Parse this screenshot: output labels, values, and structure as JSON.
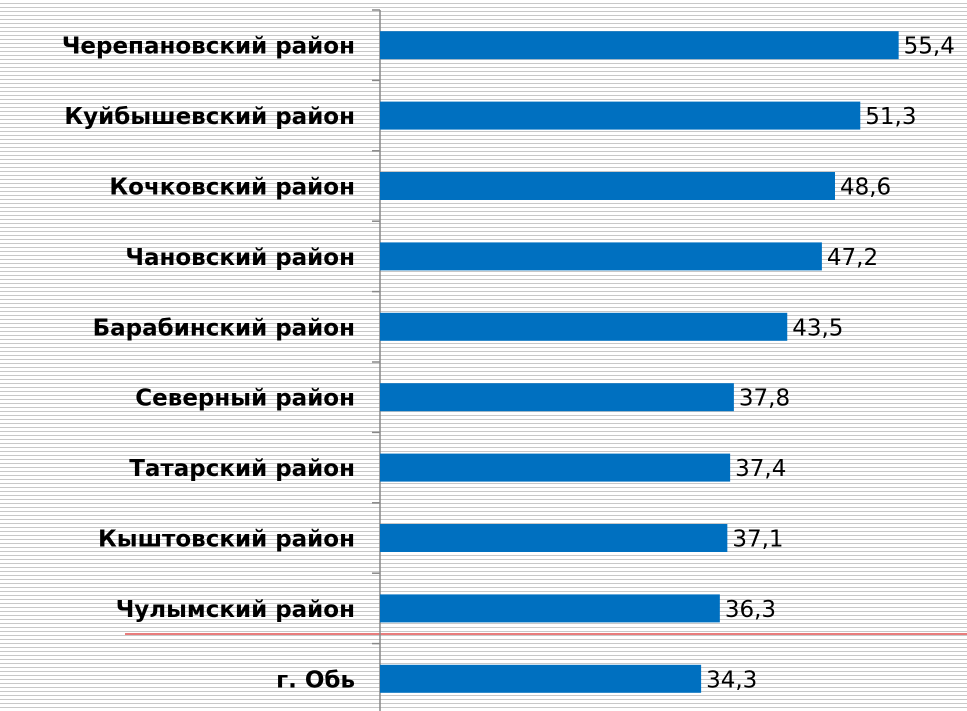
{
  "chart_data": {
    "type": "barh",
    "categories": [
      "Черепановский район",
      "Куйбышевский район",
      "Кочковский район",
      "Чановский район",
      "Барабинский район",
      "Северный район",
      "Татарский район",
      "Кыштовский район",
      "Чулымский район",
      "г. Обь"
    ],
    "values": [
      55.4,
      51.3,
      48.6,
      47.2,
      43.5,
      37.8,
      37.4,
      37.1,
      36.3,
      34.3
    ],
    "value_labels": [
      "55,4",
      "51,3",
      "48,6",
      "47,2",
      "43,5",
      "37,8",
      "37,4",
      "37,1",
      "36,3",
      "34,3"
    ],
    "color": "#0070c0",
    "xlim": [
      0,
      62.7
    ]
  }
}
